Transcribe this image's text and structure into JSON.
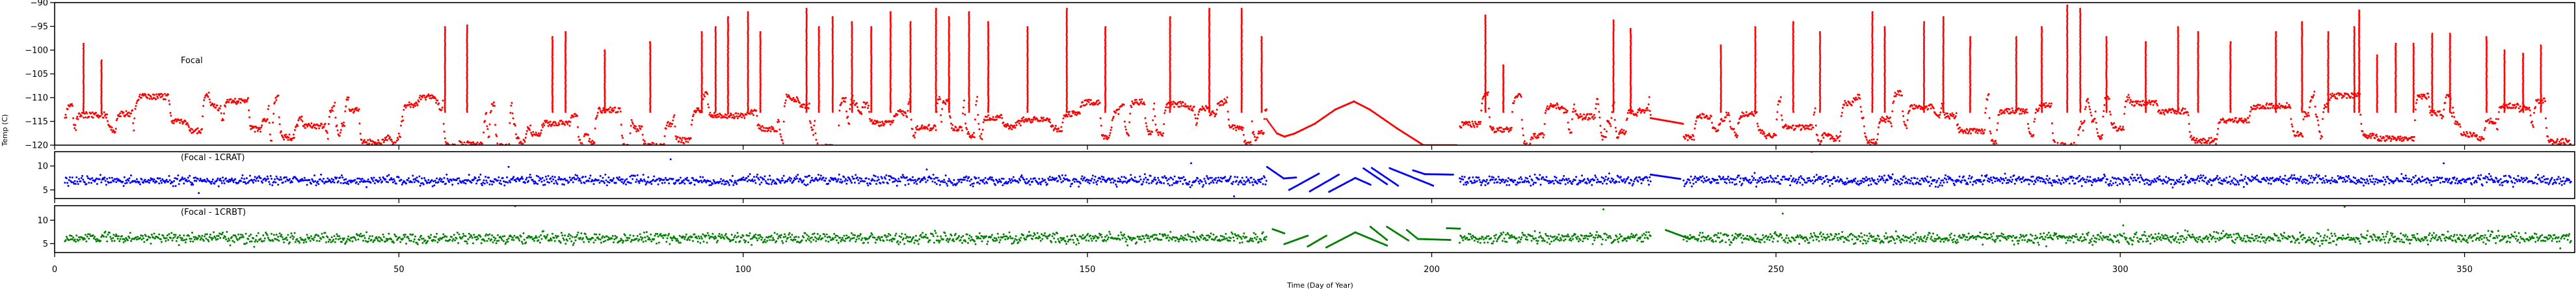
{
  "chart_data": {
    "type": "scatter",
    "xlabel": "Time (Day of Year)",
    "ylabel": "Temp (C)",
    "xlim": [
      0,
      366
    ],
    "xticks": [
      0,
      50,
      100,
      150,
      200,
      250,
      300,
      350
    ],
    "xtick_labels": [
      "0",
      "50",
      "100",
      "150",
      "200",
      "250",
      "300",
      "350"
    ],
    "panels": [
      {
        "title": "Focal",
        "color": "#ff0000",
        "ylim": [
          -120,
          -90
        ],
        "yticks": [
          -90,
          -95,
          -100,
          -105,
          -110,
          -115,
          -120
        ],
        "ytick_labels": [
          "−90",
          "−95",
          "−100",
          "−105",
          "−110",
          "−115",
          "−120"
        ],
        "baseline_range": [
          -120.5,
          -109
        ],
        "spikes": [
          [
            4.2,
            -98.5
          ],
          [
            6.8,
            -102
          ],
          [
            56.7,
            -95
          ],
          [
            59.9,
            -94.5
          ],
          [
            72.3,
            -97
          ],
          [
            74.2,
            -96
          ],
          [
            79.9,
            -100
          ],
          [
            86.5,
            -98
          ],
          [
            94,
            -96
          ],
          [
            96,
            -95
          ],
          [
            97.8,
            -93
          ],
          [
            100.7,
            -92
          ],
          [
            102.5,
            -96
          ],
          [
            109.2,
            -91
          ],
          [
            111,
            -95
          ],
          [
            113,
            -93
          ],
          [
            115.8,
            -94
          ],
          [
            118.6,
            -95
          ],
          [
            121.4,
            -92
          ],
          [
            124.3,
            -94
          ],
          [
            128,
            -91
          ],
          [
            129.9,
            -93
          ],
          [
            132.8,
            -92
          ],
          [
            135.6,
            -94
          ],
          [
            141.3,
            -95
          ],
          [
            147,
            -91
          ],
          [
            152.6,
            -95
          ],
          [
            162,
            -93
          ],
          [
            167.7,
            -91
          ],
          [
            172.4,
            -91
          ],
          [
            175.3,
            -97
          ],
          [
            207.8,
            -92.7
          ],
          [
            210.4,
            -103
          ],
          [
            226.4,
            -93.6
          ],
          [
            228.9,
            -95.4
          ],
          [
            242,
            -99
          ],
          [
            247,
            -95
          ],
          [
            252.5,
            -94
          ],
          [
            256.4,
            -96
          ],
          [
            264,
            -92
          ],
          [
            265.8,
            -95
          ],
          [
            271.5,
            -94
          ],
          [
            274.3,
            -93
          ],
          [
            278.2,
            -97
          ],
          [
            284.9,
            -97
          ],
          [
            288.6,
            -95
          ],
          [
            292.3,
            -90.5
          ],
          [
            294.2,
            -91
          ],
          [
            298,
            -97
          ],
          [
            303.7,
            -98
          ],
          [
            308.4,
            -95
          ],
          [
            311.3,
            -96
          ],
          [
            316,
            -98
          ],
          [
            322.6,
            -96
          ],
          [
            326.4,
            -94
          ],
          [
            330.2,
            -96
          ],
          [
            334,
            -95
          ],
          [
            334.7,
            -91.6
          ],
          [
            337.3,
            -101
          ],
          [
            340,
            -98.6
          ],
          [
            342.6,
            -98.5
          ],
          [
            345.3,
            -96.5
          ],
          [
            347.9,
            -96.4
          ],
          [
            353.2,
            -97
          ],
          [
            355.8,
            -100
          ],
          [
            358.5,
            -100.5
          ],
          [
            361.1,
            -98.7
          ]
        ],
        "smooth_segments": [
          [
            [
              176,
              -114.5
            ],
            [
              177.5,
              -117.5
            ],
            [
              178.6,
              -118.2
            ],
            [
              180,
              -117.6
            ],
            [
              183,
              -115.5
            ],
            [
              186,
              -112.5
            ],
            [
              188.7,
              -110.8
            ],
            [
              191,
              -112.5
            ],
            [
              195,
              -116.5
            ],
            [
              198.8,
              -120
            ],
            [
              203.6,
              -120
            ]
          ],
          [
            [
              231.8,
              -114.3
            ],
            [
              236.5,
              -115.5
            ]
          ]
        ]
      },
      {
        "title": "(Focal - 1CRAT)",
        "color": "#0000ff",
        "ylim": [
          3.2,
          13
        ],
        "yticks": [
          5,
          10
        ],
        "ytick_labels": [
          "5",
          "10"
        ],
        "center": 7.0,
        "spread": 0.7,
        "smooth_segments": [
          [
            [
              176.1,
              9.8
            ],
            [
              178.5,
              7.4
            ],
            [
              180.3,
              7.6
            ]
          ],
          [
            [
              179.3,
              5.0
            ],
            [
              183.6,
              8.4
            ]
          ],
          [
            [
              182.3,
              4.7
            ],
            [
              186.5,
              8.2
            ]
          ],
          [
            [
              185.1,
              4.6
            ],
            [
              188.9,
              7.5
            ],
            [
              191.1,
              6.1
            ]
          ],
          [
            [
              190.1,
              9.5
            ],
            [
              193.5,
              6.2
            ]
          ],
          [
            [
              191.3,
              9.6
            ],
            [
              195.1,
              5.9
            ]
          ],
          [
            [
              193.9,
              9.55
            ],
            [
              200.2,
              5.9
            ]
          ],
          [
            [
              197.3,
              9.1
            ],
            [
              199,
              8.3
            ],
            [
              203.1,
              8.2
            ]
          ],
          [
            [
              231.8,
              8.2
            ],
            [
              236.1,
              7.3
            ]
          ]
        ]
      },
      {
        "title": "(Focal - 1CRBT)",
        "color": "#008000",
        "ylim": [
          3.1,
          13.1
        ],
        "yticks": [
          5,
          10
        ],
        "ytick_labels": [
          "5",
          "10"
        ],
        "center": 6.2,
        "spread": 0.8,
        "smooth_segments": [
          [
            [
              176.9,
              8.1
            ],
            [
              178.6,
              7.2
            ]
          ],
          [
            [
              178.6,
              4.9
            ],
            [
              182,
              6.7
            ]
          ],
          [
            [
              182,
              4.4
            ],
            [
              184.7,
              6.7
            ]
          ],
          [
            [
              184.7,
              4.2
            ],
            [
              188.9,
              7.4
            ],
            [
              193.5,
              4.6
            ]
          ],
          [
            [
              191.1,
              8.6
            ],
            [
              193.5,
              5.8
            ]
          ],
          [
            [
              193.5,
              8.6
            ],
            [
              196.6,
              5.7
            ]
          ],
          [
            [
              196.4,
              7.9
            ],
            [
              198,
              6.0
            ],
            [
              202.7,
              5.8
            ]
          ],
          [
            [
              202.2,
              8.3
            ],
            [
              204.1,
              8.2
            ]
          ],
          [
            [
              234,
              7.9
            ],
            [
              237.5,
              6.0
            ]
          ]
        ]
      }
    ]
  }
}
